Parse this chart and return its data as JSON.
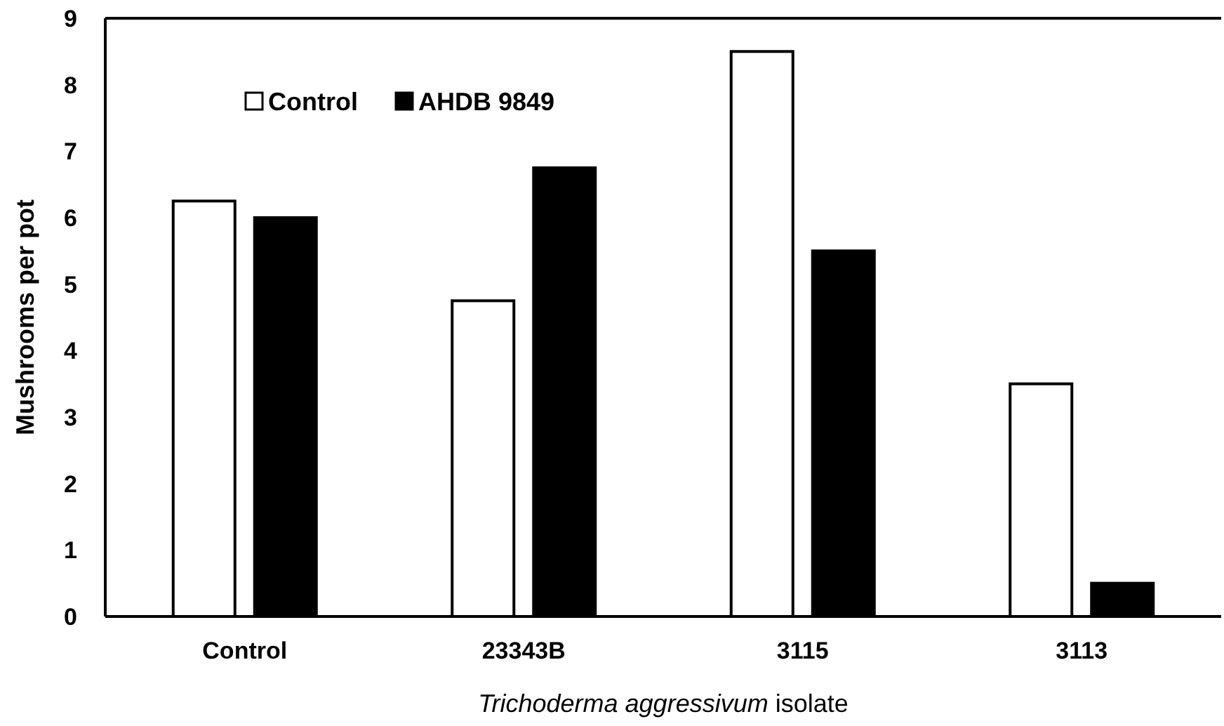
{
  "chart_data": {
    "type": "bar",
    "xlabel": "Trichoderma aggressivum isolate",
    "ylabel": "Mushrooms per pot",
    "categories": [
      "Control",
      "23343B",
      "3115",
      "3113"
    ],
    "series": [
      {
        "name": "Control",
        "color": "#ffffff",
        "values": [
          6.25,
          4.75,
          8.5,
          3.5
        ]
      },
      {
        "name": "AHDB 9849",
        "color": "#000000",
        "values": [
          6.0,
          6.75,
          5.5,
          0.5
        ]
      }
    ],
    "ylim": [
      0,
      9
    ],
    "yticks": [
      0,
      1,
      2,
      3,
      4,
      5,
      6,
      7,
      8,
      9
    ],
    "legend": "top left"
  }
}
